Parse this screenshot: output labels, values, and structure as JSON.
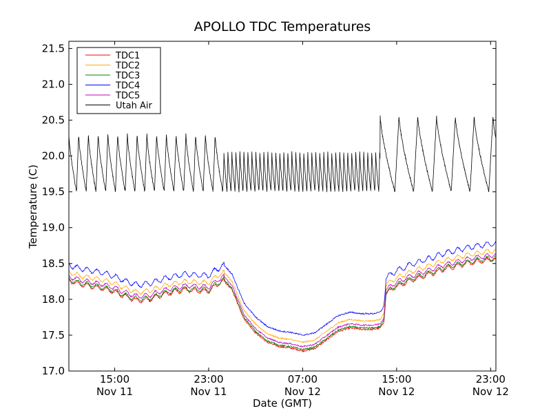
{
  "chart_data": {
    "type": "line",
    "title": "APOLLO TDC Temperatures",
    "xlabel": "Date (GMT)",
    "ylabel": "Temperature (C)",
    "x_unit": "hours since Nov 11 00:00 GMT",
    "xlim": [
      11.1,
      47.45
    ],
    "ylim": [
      17.0,
      21.6
    ],
    "yticks": [
      17.0,
      17.5,
      18.0,
      18.5,
      19.0,
      19.5,
      20.0,
      20.5,
      21.0,
      21.5
    ],
    "ytick_labels": [
      "17.0",
      "17.5",
      "18.0",
      "18.5",
      "19.0",
      "19.5",
      "20.0",
      "20.5",
      "21.0",
      "21.5"
    ],
    "xticks": [
      {
        "x": 15,
        "line1": "15:00",
        "line2": "Nov 11"
      },
      {
        "x": 23,
        "line1": "23:00",
        "line2": "Nov 11"
      },
      {
        "x": 31,
        "line1": "07:00",
        "line2": "Nov 12"
      },
      {
        "x": 39,
        "line1": "15:00",
        "line2": "Nov 12"
      },
      {
        "x": 47,
        "line1": "23:00",
        "line2": "Nov 12"
      }
    ],
    "legend_position": "top-left",
    "tdc_base": {
      "x": [
        11.1,
        12,
        13,
        14,
        15,
        16,
        17,
        18,
        19,
        20,
        21,
        22,
        23,
        23.5,
        24.3,
        25,
        26,
        27,
        28,
        29,
        30,
        31,
        32,
        33,
        34,
        35,
        36,
        37,
        37.6,
        37.9,
        38.1,
        39,
        40,
        41,
        42,
        43,
        44,
        45,
        46,
        47,
        47.45
      ],
      "y": [
        18.28,
        18.23,
        18.2,
        18.17,
        18.12,
        18.05,
        18.0,
        18.02,
        18.08,
        18.12,
        18.15,
        18.14,
        18.13,
        18.2,
        18.28,
        18.15,
        17.75,
        17.55,
        17.42,
        17.36,
        17.34,
        17.3,
        17.33,
        17.45,
        17.57,
        17.62,
        17.6,
        17.6,
        17.62,
        17.7,
        18.1,
        18.2,
        18.27,
        18.33,
        18.38,
        18.44,
        18.48,
        18.52,
        18.55,
        18.57,
        18.58
      ]
    },
    "series": [
      {
        "name": "TDC1",
        "color": "#ff0000",
        "offset": -0.02,
        "ripple": 0.03,
        "noise": 0.012
      },
      {
        "name": "TDC2",
        "color": "#ffaa00",
        "offset": 0.1,
        "ripple": 0.03,
        "noise": 0.01
      },
      {
        "name": "TDC3",
        "color": "#008000",
        "offset": 0.0,
        "ripple": 0.03,
        "noise": 0.012
      },
      {
        "name": "TDC4",
        "color": "#0000ff",
        "offset": 0.2,
        "ripple": 0.035,
        "noise": 0.01
      },
      {
        "name": "TDC5",
        "color": "#bf00bf",
        "offset": 0.04,
        "ripple": 0.03,
        "noise": 0.01
      },
      {
        "name": "Utah Air",
        "color": "#000000",
        "kind": "sawtooth",
        "segments": [
          {
            "start": 11.1,
            "end": 24.3,
            "period": 0.83,
            "low": 19.5,
            "high": 20.3
          },
          {
            "start": 24.3,
            "end": 37.6,
            "period": 0.34,
            "low": 19.5,
            "high": 20.05
          },
          {
            "start": 37.6,
            "end": 47.45,
            "period": 1.6,
            "low": 19.5,
            "high": 20.55
          }
        ]
      }
    ]
  }
}
